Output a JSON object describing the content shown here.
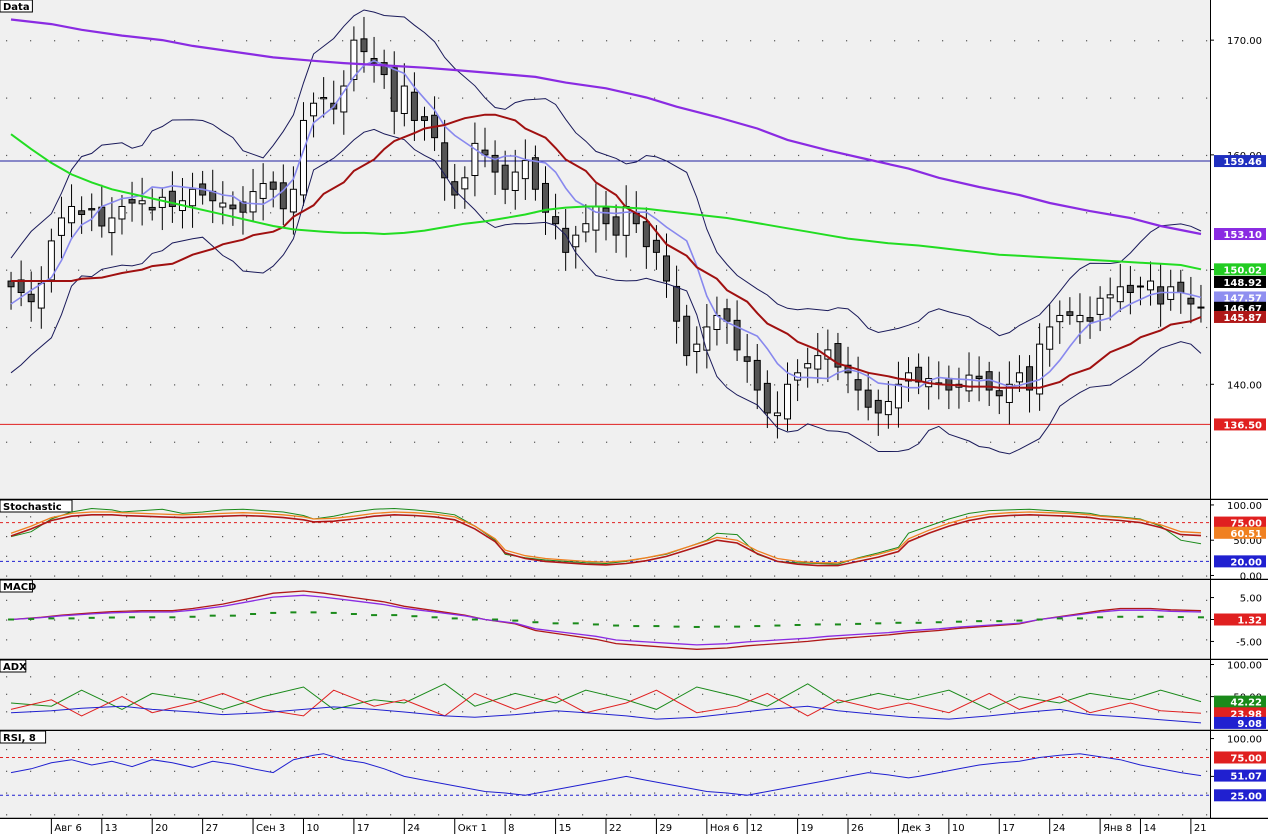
{
  "chart_data": {
    "type": "candlestick",
    "panels": [
      {
        "id": "price",
        "title": "Data",
        "ylim": [
          130,
          173.5
        ],
        "ticks": [
          {
            "v": 170,
            "label": "170.00"
          },
          {
            "v": 160,
            "label": "160.00"
          },
          {
            "v": 150,
            "label": "150.00"
          },
          {
            "v": 140,
            "label": "140.00"
          }
        ],
        "hlines": [
          {
            "v": 159.46,
            "color": "#20209f"
          },
          {
            "v": 136.5,
            "color": "#e02020"
          }
        ],
        "badges": [
          {
            "v": 159.46,
            "label": "159.46",
            "bg": "#1f2fbf",
            "fg": "#ffffff"
          },
          {
            "v": 153.1,
            "label": "153.10",
            "bg": "#8a2be2",
            "fg": "#ffffff"
          },
          {
            "v": 150.02,
            "label": "150.02",
            "bg": "#22cc22",
            "fg": "#ffffff"
          },
          {
            "v": 148.92,
            "label": "148.92",
            "bg": "#000000",
            "fg": "#ffffff"
          },
          {
            "v": 147.57,
            "label": "147.57",
            "bg": "#8f8ff0",
            "fg": "#ffffff"
          },
          {
            "v": 146.67,
            "label": "146.67",
            "bg": "#000000",
            "fg": "#ffffff"
          },
          {
            "v": 145.87,
            "label": "145.87",
            "bg": "#b01818",
            "fg": "#ffffff"
          },
          {
            "v": 136.5,
            "label": "136.50",
            "bg": "#e02020",
            "fg": "#ffffff"
          }
        ]
      },
      {
        "id": "stoch",
        "title": "Stochastic",
        "ylim": [
          -5,
          107
        ],
        "ticks": [
          {
            "v": 100,
            "label": "100.00"
          },
          {
            "v": 50,
            "label": "50.00"
          },
          {
            "v": 0,
            "label": "0.00"
          }
        ],
        "hlines": [
          {
            "v": 75,
            "color": "#e02020",
            "dash": true
          },
          {
            "v": 20,
            "color": "#2020d0",
            "dash": true
          }
        ],
        "badges": [
          {
            "v": 75,
            "label": "75.00",
            "bg": "#e02020",
            "fg": "#ffffff"
          },
          {
            "v": 60.51,
            "label": "60.51",
            "bg": "#f08020",
            "fg": "#ffffff"
          },
          {
            "v": 20,
            "label": "20.00",
            "bg": "#2020d0",
            "fg": "#ffffff"
          }
        ]
      },
      {
        "id": "macd",
        "title": "MACD",
        "ylim": [
          -9,
          9
        ],
        "ticks": [
          {
            "v": 5,
            "label": "5.00"
          },
          {
            "v": 0,
            "label": "0.00"
          },
          {
            "v": -5,
            "label": "-5.00"
          }
        ],
        "hlines": [],
        "badges": [
          {
            "v": 0,
            "label": "1.32",
            "bg": "#e02020",
            "fg": "#ffffff"
          }
        ]
      },
      {
        "id": "adx",
        "title": "ADX",
        "ylim": [
          -2,
          107
        ],
        "ticks": [
          {
            "v": 100,
            "label": "100.00"
          },
          {
            "v": 50,
            "label": "50.00"
          }
        ],
        "hlines": [],
        "badges": [
          {
            "v": 42.22,
            "label": "42.22",
            "bg": "#1a8a1a",
            "fg": "#ffffff"
          },
          {
            "v": 23.98,
            "label": "23.98",
            "bg": "#e02020",
            "fg": "#ffffff"
          },
          {
            "v": 9.08,
            "label": "9.08",
            "bg": "#2020d0",
            "fg": "#ffffff"
          }
        ]
      },
      {
        "id": "rsi",
        "title": "RSI, 8",
        "ylim": [
          -5,
          110
        ],
        "ticks": [
          {
            "v": 100,
            "label": "100.00"
          },
          {
            "v": 50,
            "label": "50.00"
          }
        ],
        "hlines": [
          {
            "v": 75,
            "color": "#e02020",
            "dash": true
          },
          {
            "v": 25,
            "color": "#2020d0",
            "dash": true
          }
        ],
        "badges": [
          {
            "v": 75,
            "label": "75.00",
            "bg": "#e02020",
            "fg": "#ffffff"
          },
          {
            "v": 51.07,
            "label": "51.07",
            "bg": "#2020d0",
            "fg": "#ffffff"
          },
          {
            "v": 25,
            "label": "25.00",
            "bg": "#2020d0",
            "fg": "#ffffff"
          }
        ]
      }
    ],
    "x_labels": [
      {
        "i": 4,
        "label": "Авг 6"
      },
      {
        "i": 9,
        "label": "13"
      },
      {
        "i": 14,
        "label": "20"
      },
      {
        "i": 19,
        "label": "27"
      },
      {
        "i": 24,
        "label": "Сен 3"
      },
      {
        "i": 29,
        "label": "10"
      },
      {
        "i": 34,
        "label": "17"
      },
      {
        "i": 39,
        "label": "24"
      },
      {
        "i": 44,
        "label": "Окт 1"
      },
      {
        "i": 49,
        "label": "8"
      },
      {
        "i": 54,
        "label": "15"
      },
      {
        "i": 59,
        "label": "22"
      },
      {
        "i": 64,
        "label": "29"
      },
      {
        "i": 69,
        "label": "Ноя 6"
      },
      {
        "i": 73,
        "label": "12"
      },
      {
        "i": 78,
        "label": "19"
      },
      {
        "i": 83,
        "label": "26"
      },
      {
        "i": 88,
        "label": "Дек 3"
      },
      {
        "i": 93,
        "label": "10"
      },
      {
        "i": 98,
        "label": "17"
      },
      {
        "i": 103,
        "label": "24"
      },
      {
        "i": 108,
        "label": "Янв 8"
      },
      {
        "i": 112,
        "label": "14"
      },
      {
        "i": 117,
        "label": "21"
      }
    ],
    "close": [
      148.5,
      148.0,
      147.2,
      148.8,
      152.5,
      154.5,
      155.5,
      154.8,
      155.2,
      153.8,
      154.5,
      155.5,
      155.8,
      156.0,
      155.2,
      156.3,
      155.5,
      156.0,
      157.0,
      156.5,
      156.0,
      155.8,
      155.3,
      155.0,
      156.8,
      157.5,
      157.0,
      155.3,
      157.0,
      163.0,
      164.5,
      165.0,
      164.0,
      166.0,
      170.0,
      169.0,
      168.0,
      167.0,
      163.8,
      166.0,
      163.0,
      163.0,
      161.5,
      158.0,
      156.5,
      158.0,
      161.0,
      160.0,
      158.5,
      157.0,
      158.5,
      159.5,
      157.0,
      155.0,
      154.0,
      151.5,
      153.0,
      154.0,
      155.5,
      154.0,
      153.0,
      155.5,
      154.0,
      152.0,
      151.5,
      149.0,
      145.5,
      142.5,
      143.5,
      145.0,
      146.0,
      145.5,
      143.0,
      142.0,
      139.5,
      137.5,
      137.5,
      140.0,
      141.0,
      141.8,
      142.5,
      143.0,
      141.5,
      141.0,
      139.5,
      138.0,
      137.5,
      138.5,
      140.0,
      141.0,
      140.2,
      140.5,
      140.0,
      139.5,
      140.0,
      140.8,
      140.5,
      139.5,
      139.0,
      140.0,
      141.0,
      139.5,
      143.5,
      145.0,
      146.0,
      146.0,
      146.0,
      145.5,
      147.5,
      147.8,
      148.5,
      148.0,
      148.5,
      149.0,
      147.0,
      148.5,
      148.0,
      147.0,
      146.67
    ],
    "ma_short": {
      "name": "SMA 5",
      "color": "#8888ee",
      "values": [
        147.0,
        147.6,
        148.2,
        149.3,
        150.8,
        152.7,
        153.9,
        154.4,
        155.5,
        156.2,
        156.3,
        156.5,
        157.2,
        157.1,
        157.3,
        157.1,
        157.0,
        156.8,
        156.5,
        156.4,
        155.8,
        155.7,
        156.2,
        156.9,
        157.9,
        160.4,
        162.8,
        164.2,
        165.5,
        166.8,
        167.8,
        168.2,
        167.8,
        167.1,
        165.9,
        164.9,
        163.9,
        162.5,
        161.7,
        160.5,
        159.9,
        159.6,
        159.9,
        159.9,
        159.6,
        159.3,
        158.5,
        157.1,
        156.0,
        155.5,
        155.0,
        154.9,
        155.0,
        155.0,
        155.0,
        154.4,
        153.7,
        152.5,
        150.3,
        147.7,
        146.0,
        145.4,
        145.0,
        144.2,
        143.1,
        141.8,
        141.0,
        140.6,
        140.6,
        140.5,
        141.0,
        141.3,
        141.1,
        140.7,
        140.1,
        139.9,
        139.7,
        139.7,
        140.3,
        140.6,
        140.5,
        140.4,
        140.3,
        140.4,
        140.1,
        139.8,
        139.9,
        140.4,
        141.1,
        142.1,
        143.3,
        144.4,
        145.3,
        145.8,
        146.5,
        147.0,
        147.4,
        147.8,
        148.0,
        148.0,
        147.8,
        147.57
      ]
    },
    "ma_mid": {
      "name": "SMA 20",
      "color": "#a01010",
      "values": [
        149.0,
        149.0,
        149.0,
        149.0,
        149.0,
        149.2,
        149.3,
        149.5,
        149.7,
        150.0,
        150.3,
        150.5,
        150.9,
        151.3,
        151.8,
        152.2,
        152.6,
        153.0,
        153.3,
        153.7,
        154.6,
        155.6,
        156.6,
        157.6,
        158.6,
        159.6,
        160.5,
        161.2,
        161.9,
        162.3,
        162.6,
        162.9,
        163.2,
        163.5,
        163.5,
        163.0,
        162.3,
        161.5,
        160.6,
        159.6,
        158.6,
        157.6,
        156.5,
        155.4,
        154.4,
        153.3,
        152.2,
        151.2,
        150.2,
        149.2,
        148.2,
        147.2,
        146.2,
        145.3,
        144.4,
        143.7,
        143.0,
        142.4,
        141.8,
        141.3,
        141.0,
        140.7,
        140.5,
        140.3,
        140.1,
        140.0,
        139.9,
        139.8,
        139.8,
        139.7,
        139.7,
        139.7,
        139.7,
        140.2,
        140.8,
        141.4,
        142.1,
        142.8,
        143.5,
        144.1,
        144.7,
        145.2,
        145.5,
        145.87
      ]
    },
    "ma_green": {
      "name": "SMA 50",
      "color": "#22dd22",
      "values": [
        161.8,
        160.5,
        159.3,
        158.3,
        157.6,
        157.0,
        156.6,
        156.2,
        155.8,
        155.4,
        155.0,
        154.6,
        154.2,
        153.8,
        153.5,
        153.3,
        153.2,
        153.2,
        153.1,
        153.2,
        153.4,
        153.7,
        154.0,
        154.2,
        154.5,
        154.8,
        155.2,
        155.4,
        155.5,
        155.5,
        155.4,
        155.3,
        155.1,
        154.9,
        154.7,
        154.5,
        154.2,
        153.9,
        153.6,
        153.3,
        153.0,
        152.7,
        152.5,
        152.3,
        152.1,
        151.9,
        151.7,
        151.5,
        151.3,
        151.2,
        151.1,
        151.0,
        150.9,
        150.8,
        150.7,
        150.6,
        150.5,
        150.4,
        150.02
      ]
    },
    "ma_long": {
      "name": "SMA 200",
      "color": "#8a2be2",
      "values": [
        171.8,
        171.4,
        170.9,
        170.4,
        170.0,
        169.5,
        169.0,
        168.5,
        168.2,
        168.0,
        167.8,
        167.6,
        167.4,
        167.1,
        166.8,
        166.3,
        165.8,
        165.0,
        164.2,
        163.3,
        162.3,
        161.3,
        160.4,
        159.6,
        158.8,
        158.0,
        157.2,
        156.5,
        155.8,
        155.1,
        154.5,
        153.8,
        153.1
      ]
    },
    "stochastic": {
      "k": [
        55,
        62,
        80,
        90,
        95,
        93,
        90,
        92,
        94,
        88,
        90,
        93,
        94,
        92,
        90,
        85,
        80,
        84,
        90,
        94,
        95,
        93,
        90,
        86,
        70,
        50,
        30,
        25,
        22,
        20,
        18,
        17,
        20,
        25,
        30,
        40,
        50,
        60,
        58,
        30,
        20,
        18,
        17,
        16,
        25,
        32,
        40,
        60,
        70,
        80,
        88,
        92,
        93,
        94,
        92,
        90,
        88,
        85,
        83,
        80,
        70,
        50,
        45
      ],
      "d": [
        60,
        70,
        82,
        88,
        90,
        90,
        89,
        88,
        87,
        86,
        87,
        88,
        89,
        88,
        86,
        83,
        80,
        81,
        84,
        88,
        90,
        89,
        87,
        83,
        70,
        52,
        36,
        28,
        24,
        22,
        20,
        19,
        21,
        25,
        31,
        40,
        49,
        54,
        50,
        35,
        24,
        20,
        18,
        18,
        24,
        30,
        38,
        52,
        64,
        74,
        82,
        87,
        89,
        90,
        89,
        88,
        86,
        84,
        82,
        79,
        72,
        62,
        60.51
      ]
    },
    "macd": {
      "signal_label": "1.32",
      "line": [
        0,
        0.5,
        1,
        1.5,
        1.8,
        2,
        2,
        2.5,
        3.5,
        5,
        6,
        6.5,
        6,
        5,
        4,
        3,
        2,
        1,
        0,
        -1,
        -2.5,
        -3.5,
        -4.5,
        -5.5,
        -6,
        -6.5,
        -6.8,
        -6.5,
        -6,
        -5.5,
        -5,
        -4.5,
        -4,
        -3.5,
        -3,
        -2.5,
        -2,
        -1.5,
        -1,
        0,
        1,
        2,
        2.5,
        2.5,
        2.2,
        2
      ]
    },
    "adx": {
      "plus_di": [
        40,
        35,
        60,
        30,
        55,
        45,
        30,
        50,
        65,
        30,
        45,
        40,
        70,
        35,
        55,
        40,
        60,
        45,
        30,
        65,
        50,
        35,
        70,
        40,
        55,
        45,
        60,
        30,
        50,
        40,
        55,
        45,
        60,
        42.22
      ],
      "minus_di": [
        30,
        45,
        20,
        50,
        25,
        40,
        55,
        30,
        20,
        60,
        35,
        45,
        20,
        55,
        30,
        50,
        25,
        40,
        60,
        25,
        35,
        55,
        20,
        45,
        30,
        40,
        25,
        55,
        30,
        50,
        25,
        40,
        28,
        23.98
      ],
      "adx": [
        25,
        28,
        32,
        35,
        30,
        26,
        22,
        25,
        30,
        34,
        30,
        26,
        20,
        18,
        22,
        28,
        25,
        20,
        15,
        18,
        25,
        30,
        35,
        28,
        22,
        18,
        15,
        20,
        25,
        30,
        22,
        18,
        14,
        9.08
      ]
    },
    "rsi": {
      "values": [
        55,
        60,
        68,
        72,
        65,
        70,
        63,
        72,
        68,
        62,
        70,
        66,
        60,
        55,
        72,
        78,
        80,
        72,
        68,
        60,
        50,
        45,
        40,
        35,
        30,
        28,
        25,
        30,
        35,
        40,
        45,
        50,
        45,
        40,
        35,
        30,
        28,
        25,
        30,
        35,
        40,
        45,
        50,
        55,
        52,
        48,
        50,
        55,
        60,
        65,
        68,
        70,
        75,
        78,
        80,
        76,
        72,
        65,
        60,
        55,
        51.07
      ]
    }
  }
}
